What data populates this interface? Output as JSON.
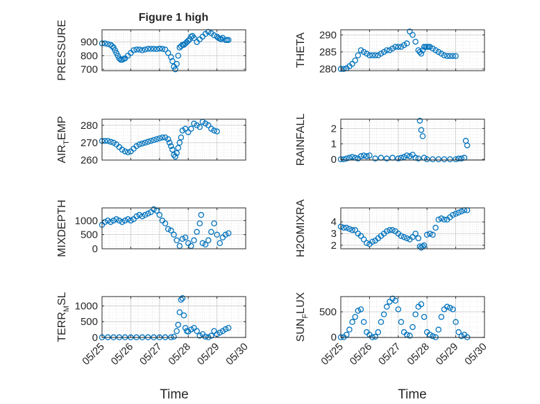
{
  "figure": {
    "title": "Figure 1 high",
    "xlabel": "Time",
    "x_ticks": [
      "05/25",
      "05/26",
      "05/27",
      "05/28",
      "05/29",
      "05/30"
    ],
    "marker_color": "#0072bd",
    "grid": "major and minor, dotted"
  },
  "chart_data": [
    {
      "type": "scatter",
      "ylabel": "PRESSURE",
      "yticks": [
        700,
        800,
        900
      ],
      "ylim": [
        690,
        990
      ],
      "xlim": [
        0,
        5
      ],
      "x": [
        0,
        0.1,
        0.2,
        0.3,
        0.35,
        0.4,
        0.45,
        0.5,
        0.55,
        0.6,
        0.65,
        0.7,
        0.75,
        0.8,
        0.9,
        1,
        1.1,
        1.2,
        1.3,
        1.4,
        1.5,
        1.6,
        1.7,
        1.8,
        1.9,
        2,
        2.1,
        2.2,
        2.3,
        2.4,
        2.45,
        2.5,
        2.55,
        2.6,
        2.65,
        2.7,
        2.75,
        2.8,
        2.85,
        2.9,
        2.95,
        3,
        3.05,
        3.1,
        3.15,
        3.2,
        3.3,
        3.4,
        3.5,
        3.6,
        3.7,
        3.8,
        3.9,
        4,
        4.05,
        4.1,
        4.15,
        4.2,
        4.3,
        4.35,
        4.4
      ],
      "y": [
        890,
        890,
        885,
        880,
        870,
        860,
        840,
        820,
        800,
        780,
        770,
        770,
        775,
        780,
        800,
        820,
        840,
        845,
        845,
        840,
        845,
        850,
        850,
        850,
        848,
        852,
        850,
        845,
        820,
        790,
        760,
        720,
        700,
        740,
        800,
        860,
        870,
        880,
        880,
        890,
        900,
        910,
        920,
        940,
        945,
        930,
        900,
        920,
        940,
        960,
        975,
        965,
        950,
        940,
        930,
        925,
        920,
        930,
        915,
        915,
        915
      ]
    },
    {
      "type": "scatter",
      "ylabel": "THETA",
      "yticks": [
        280,
        285,
        290
      ],
      "ylim": [
        279.5,
        291.5
      ],
      "xlim": [
        0,
        5
      ],
      "x": [
        0,
        0.1,
        0.2,
        0.3,
        0.4,
        0.5,
        0.6,
        0.7,
        0.8,
        0.9,
        1,
        1.1,
        1.2,
        1.3,
        1.4,
        1.5,
        1.6,
        1.7,
        1.8,
        1.9,
        2,
        2.1,
        2.2,
        2.3,
        2.4,
        2.5,
        2.6,
        2.7,
        2.75,
        2.8,
        2.85,
        2.9,
        2.95,
        3,
        3.05,
        3.1,
        3.2,
        3.3,
        3.4,
        3.5,
        3.6,
        3.7,
        3.8,
        3.9,
        4
      ],
      "y": [
        280,
        280,
        280.2,
        280.8,
        281.5,
        282.5,
        284,
        285.5,
        285,
        284.5,
        284,
        284,
        284,
        284,
        284.5,
        285,
        285.5,
        285.5,
        286,
        286.5,
        286.5,
        286.5,
        287,
        287.5,
        291,
        290,
        288,
        285.5,
        285,
        284.5,
        285.5,
        286.5,
        286.5,
        286.5,
        286.5,
        286.5,
        286,
        285.5,
        285,
        284.5,
        284,
        283.8,
        283.8,
        283.8,
        283.8
      ]
    },
    {
      "type": "scatter",
      "ylabel": "AIR_TEMP",
      "yticks": [
        260,
        270,
        280
      ],
      "ylim": [
        260,
        283.5
      ],
      "xlim": [
        0,
        5
      ],
      "x": [
        0,
        0.1,
        0.2,
        0.3,
        0.4,
        0.5,
        0.6,
        0.7,
        0.8,
        0.9,
        1,
        1.1,
        1.2,
        1.3,
        1.4,
        1.5,
        1.6,
        1.7,
        1.8,
        1.9,
        2,
        2.1,
        2.2,
        2.3,
        2.35,
        2.4,
        2.45,
        2.5,
        2.55,
        2.6,
        2.65,
        2.7,
        2.75,
        2.8,
        2.9,
        3,
        3.1,
        3.2,
        3.3,
        3.4,
        3.5,
        3.6,
        3.7,
        3.8,
        3.9,
        4
      ],
      "y": [
        271,
        271,
        271,
        270.5,
        270,
        269,
        267.5,
        266,
        265,
        264.5,
        265,
        266.5,
        268,
        269,
        269.5,
        270,
        270.5,
        271,
        271.5,
        272,
        272.5,
        273,
        273,
        272,
        270,
        268,
        266,
        263,
        262,
        264,
        267,
        270,
        273,
        277,
        278,
        276,
        278,
        281,
        280,
        279,
        282,
        281,
        280,
        278,
        277,
        276.5
      ]
    },
    {
      "type": "scatter",
      "ylabel": "RAINFALL",
      "yticks": [
        0,
        1,
        2
      ],
      "ylim": [
        -0.05,
        2.6
      ],
      "xlim": [
        0,
        5
      ],
      "x": [
        0,
        0.1,
        0.2,
        0.3,
        0.4,
        0.5,
        0.6,
        0.7,
        0.8,
        0.9,
        1,
        1.2,
        1.4,
        1.6,
        1.8,
        2,
        2.1,
        2.2,
        2.3,
        2.4,
        2.5,
        2.6,
        2.7,
        2.75,
        2.8,
        2.85,
        2.9,
        3,
        3.2,
        3.4,
        3.6,
        3.8,
        4,
        4.1,
        4.2,
        4.3,
        4.35,
        4.4
      ],
      "y": [
        0,
        0,
        0.05,
        0.1,
        0.15,
        0.1,
        0.05,
        0.2,
        0.25,
        0.2,
        0.25,
        0.05,
        0.1,
        0.05,
        0.1,
        0.05,
        0.1,
        0.15,
        0.25,
        0.2,
        0.3,
        0.1,
        0.05,
        2.5,
        1.9,
        1.5,
        0.1,
        0,
        0,
        0,
        0,
        0,
        0,
        0.05,
        0.05,
        0.1,
        1.2,
        0.9
      ]
    },
    {
      "type": "scatter",
      "ylabel": "MIXDEPTH",
      "yticks": [
        0,
        500,
        1000
      ],
      "ylim": [
        0,
        1450
      ],
      "xlim": [
        0,
        5
      ],
      "x": [
        0,
        0.1,
        0.2,
        0.3,
        0.4,
        0.5,
        0.6,
        0.7,
        0.8,
        0.9,
        1,
        1.1,
        1.2,
        1.3,
        1.4,
        1.5,
        1.6,
        1.7,
        1.8,
        1.9,
        2,
        2.1,
        2.2,
        2.3,
        2.4,
        2.5,
        2.6,
        2.7,
        2.8,
        2.9,
        3,
        3.1,
        3.2,
        3.3,
        3.4,
        3.45,
        3.5,
        3.6,
        3.7,
        3.8,
        3.9,
        4,
        4.1,
        4.2,
        4.3,
        4.4
      ],
      "y": [
        850,
        950,
        1000,
        950,
        1000,
        1050,
        1000,
        950,
        1000,
        1050,
        1000,
        1050,
        1150,
        1200,
        1150,
        1200,
        1250,
        1300,
        1400,
        1350,
        1200,
        1000,
        900,
        700,
        650,
        500,
        300,
        100,
        350,
        400,
        200,
        100,
        300,
        600,
        900,
        1200,
        200,
        150,
        300,
        600,
        900,
        500,
        200,
        400,
        500,
        550
      ]
    },
    {
      "type": "scatter",
      "ylabel": "H2OMIXRA",
      "yticks": [
        2,
        3,
        4
      ],
      "ylim": [
        1.7,
        5.2
      ],
      "xlim": [
        0,
        5
      ],
      "x": [
        0,
        0.1,
        0.2,
        0.3,
        0.4,
        0.5,
        0.6,
        0.7,
        0.8,
        0.9,
        1,
        1.1,
        1.2,
        1.3,
        1.4,
        1.5,
        1.6,
        1.7,
        1.8,
        1.9,
        2,
        2.1,
        2.2,
        2.3,
        2.4,
        2.5,
        2.6,
        2.7,
        2.75,
        2.8,
        2.85,
        2.9,
        3,
        3.1,
        3.2,
        3.3,
        3.4,
        3.5,
        3.6,
        3.7,
        3.8,
        3.9,
        4,
        4.1,
        4.2,
        4.3,
        4.4
      ],
      "y": [
        3.6,
        3.5,
        3.5,
        3.4,
        3.3,
        3.3,
        3.0,
        2.8,
        2.5,
        2.2,
        2.1,
        2.3,
        2.4,
        2.6,
        2.8,
        3.0,
        3.2,
        3.3,
        3.3,
        3.2,
        3.0,
        2.8,
        2.7,
        2.6,
        2.5,
        2.7,
        3.0,
        2.6,
        1.9,
        1.8,
        1.9,
        2.0,
        2.9,
        3.0,
        2.9,
        3.5,
        4.2,
        4.3,
        4.2,
        4.2,
        4.4,
        4.6,
        4.7,
        4.8,
        4.9,
        5.0,
        5.0
      ]
    },
    {
      "type": "scatter",
      "ylabel": "TERR_MSL",
      "yticks": [
        0,
        500,
        1000
      ],
      "ylim": [
        -5,
        1300
      ],
      "xlim": [
        0,
        5
      ],
      "x": [
        0,
        0.2,
        0.4,
        0.6,
        0.8,
        1,
        1.2,
        1.4,
        1.6,
        1.8,
        2,
        2.2,
        2.4,
        2.5,
        2.6,
        2.65,
        2.7,
        2.75,
        2.8,
        2.85,
        2.9,
        2.95,
        3,
        3.1,
        3.2,
        3.3,
        3.4,
        3.5,
        3.6,
        3.7,
        3.8,
        3.9,
        4,
        4.1,
        4.2,
        4.3,
        4.4
      ],
      "y": [
        0,
        0,
        0,
        0,
        0,
        0,
        0,
        0,
        0,
        0,
        0,
        0,
        0,
        20,
        200,
        400,
        800,
        1200,
        1250,
        700,
        300,
        200,
        180,
        250,
        300,
        200,
        50,
        100,
        20,
        0,
        50,
        200,
        100,
        150,
        200,
        260,
        300
      ]
    },
    {
      "type": "scatter",
      "ylabel": "SUN_FLUX",
      "yticks": [
        0,
        500
      ],
      "ylim": [
        -5,
        800
      ],
      "xlim": [
        0,
        5
      ],
      "x": [
        0,
        0.1,
        0.2,
        0.3,
        0.4,
        0.5,
        0.6,
        0.7,
        0.8,
        0.9,
        1,
        1.1,
        1.2,
        1.3,
        1.4,
        1.5,
        1.6,
        1.7,
        1.8,
        1.9,
        2,
        2.1,
        2.2,
        2.3,
        2.4,
        2.5,
        2.6,
        2.7,
        2.8,
        2.9,
        3,
        3.1,
        3.2,
        3.3,
        3.4,
        3.5,
        3.6,
        3.7,
        3.8,
        3.9,
        4,
        4.1,
        4.2,
        4.3,
        4.4
      ],
      "y": [
        0,
        0,
        50,
        150,
        300,
        400,
        520,
        550,
        300,
        100,
        50,
        0,
        10,
        100,
        300,
        450,
        600,
        700,
        760,
        720,
        550,
        300,
        100,
        50,
        30,
        200,
        450,
        600,
        650,
        400,
        100,
        50,
        20,
        0,
        150,
        400,
        550,
        600,
        580,
        550,
        300,
        100,
        20,
        50,
        0
      ]
    }
  ]
}
